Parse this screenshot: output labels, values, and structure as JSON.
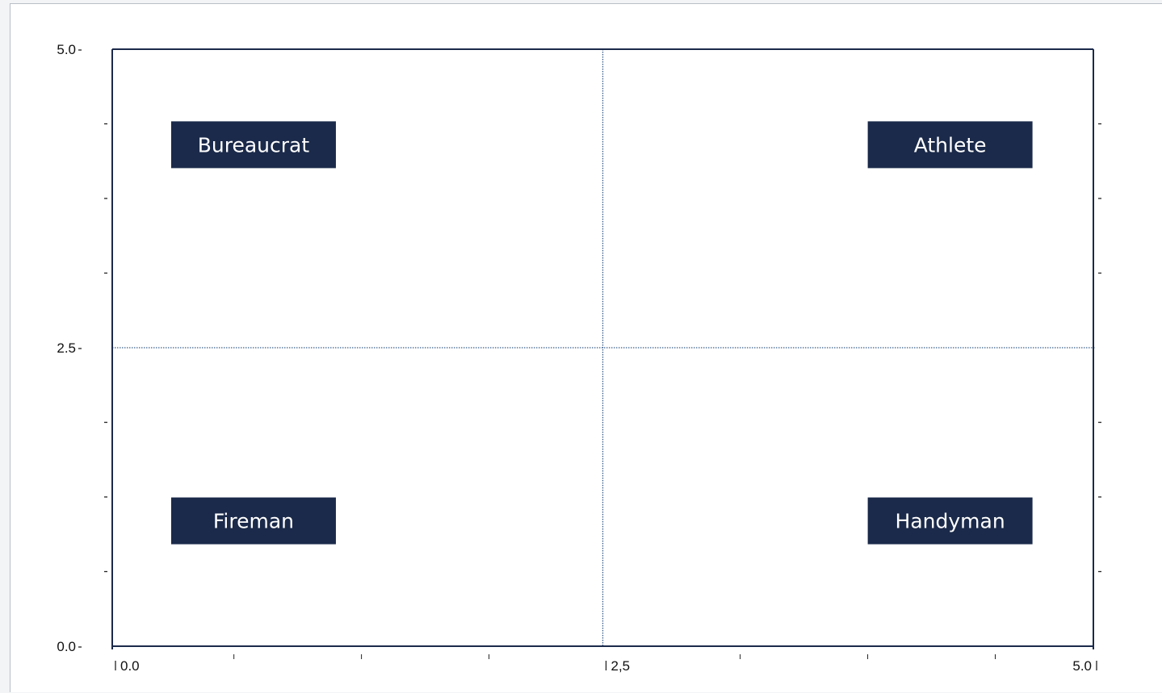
{
  "chart_data": {
    "type": "scatter",
    "subtype": "quadrant-matrix",
    "title": "",
    "xlabel": "",
    "ylabel": "",
    "xlim": [
      0,
      5
    ],
    "ylim": [
      0,
      5
    ],
    "divider_x": 2.5,
    "divider_y": 2.5,
    "x_tick_labels": [
      {
        "value": 0,
        "label": "0.0"
      },
      {
        "value": 2.5,
        "label": "2,5"
      },
      {
        "value": 5,
        "label": "5.0"
      }
    ],
    "y_tick_labels": [
      {
        "value": 0,
        "label": "0.0"
      },
      {
        "value": 2.5,
        "label": "2.5"
      },
      {
        "value": 5,
        "label": "5.0"
      }
    ],
    "x_minor_ticks": [
      0.62,
      1.27,
      1.92,
      3.2,
      3.85,
      4.5
    ],
    "y_minor_ticks": [
      0.625,
      1.25,
      1.875,
      3.125,
      3.75,
      4.375
    ],
    "points": [
      {
        "label": "Bureaucrat",
        "x": 0.72,
        "y": 4.2
      },
      {
        "label": "Athlete",
        "x": 4.27,
        "y": 4.2
      },
      {
        "label": "Fireman",
        "x": 0.72,
        "y": 1.05
      },
      {
        "label": "Handyman",
        "x": 4.27,
        "y": 1.05
      }
    ],
    "grid": false,
    "colors": {
      "axis": "#1b2a4a",
      "divider": "#3b5f8a",
      "label_box": "#1b2a4a",
      "label_text": "#ffffff"
    }
  }
}
